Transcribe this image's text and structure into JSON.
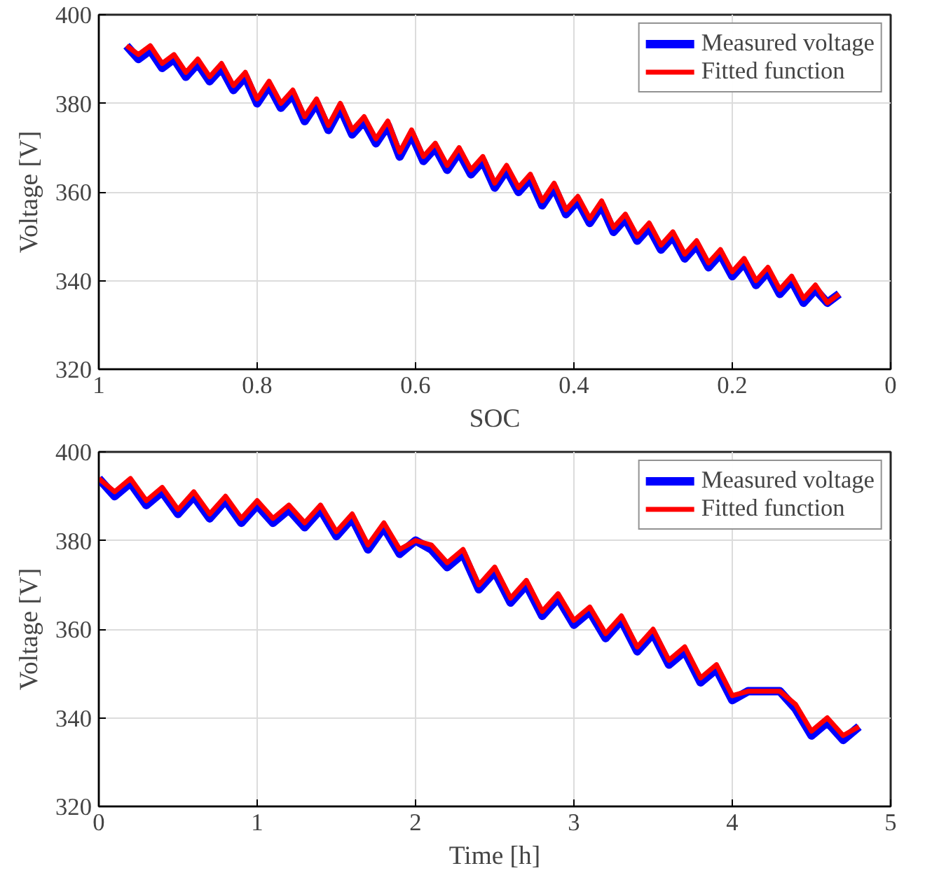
{
  "chart_data": [
    {
      "type": "line",
      "xlabel": "SOC",
      "ylabel": "Voltage [V]",
      "xlim": [
        1,
        0
      ],
      "ylim": [
        320,
        400
      ],
      "xticks": [
        1,
        0.8,
        0.6,
        0.4,
        0.2,
        0
      ],
      "yticks": [
        320,
        340,
        360,
        380,
        400
      ],
      "grid": true,
      "legend": "top right",
      "x": [
        0.965,
        0.95,
        0.935,
        0.92,
        0.905,
        0.89,
        0.875,
        0.86,
        0.845,
        0.83,
        0.815,
        0.8,
        0.785,
        0.77,
        0.755,
        0.74,
        0.725,
        0.71,
        0.695,
        0.68,
        0.665,
        0.65,
        0.635,
        0.62,
        0.605,
        0.59,
        0.575,
        0.56,
        0.545,
        0.53,
        0.515,
        0.5,
        0.485,
        0.47,
        0.455,
        0.44,
        0.425,
        0.41,
        0.395,
        0.38,
        0.365,
        0.35,
        0.335,
        0.32,
        0.305,
        0.29,
        0.275,
        0.26,
        0.245,
        0.23,
        0.215,
        0.2,
        0.185,
        0.17,
        0.155,
        0.14,
        0.125,
        0.11,
        0.095,
        0.08,
        0.065
      ],
      "series": [
        {
          "name": "Measured voltage",
          "color": "#0000ff",
          "values": [
            393,
            390,
            392,
            388,
            390,
            386,
            389,
            385,
            388,
            383,
            386,
            380,
            384,
            379,
            382,
            376,
            380,
            374,
            379,
            373,
            376,
            371,
            375,
            368,
            373,
            367,
            370,
            365,
            369,
            364,
            367,
            361,
            365,
            360,
            363,
            357,
            361,
            355,
            358,
            353,
            357,
            351,
            354,
            349,
            352,
            347,
            350,
            345,
            348,
            343,
            346,
            341,
            344,
            339,
            342,
            337,
            340,
            335,
            338,
            335,
            337
          ]
        },
        {
          "name": "Fitted function",
          "color": "#ff0000",
          "values": [
            393,
            391,
            393,
            389,
            391,
            387,
            390,
            386,
            389,
            384,
            387,
            381,
            385,
            380,
            383,
            377,
            381,
            375,
            380,
            374,
            377,
            372,
            376,
            369,
            374,
            368,
            371,
            366,
            370,
            365,
            368,
            362,
            366,
            361,
            364,
            358,
            362,
            356,
            359,
            354,
            358,
            352,
            355,
            350,
            353,
            348,
            351,
            346,
            349,
            344,
            347,
            342,
            345,
            340,
            343,
            338,
            341,
            336,
            339,
            335,
            337
          ]
        }
      ]
    },
    {
      "type": "line",
      "xlabel": "Time [h]",
      "ylabel": "Voltage [V]",
      "xlim": [
        0,
        5
      ],
      "ylim": [
        320,
        400
      ],
      "xticks": [
        0,
        1,
        2,
        3,
        4,
        5
      ],
      "yticks": [
        320,
        340,
        360,
        380,
        400
      ],
      "grid": true,
      "legend": "top right",
      "x": [
        0,
        0.1,
        0.2,
        0.3,
        0.4,
        0.5,
        0.6,
        0.7,
        0.8,
        0.9,
        1.0,
        1.1,
        1.2,
        1.3,
        1.4,
        1.5,
        1.6,
        1.7,
        1.8,
        1.9,
        2.0,
        2.1,
        2.2,
        2.3,
        2.4,
        2.5,
        2.6,
        2.7,
        2.8,
        2.9,
        3.0,
        3.1,
        3.2,
        3.3,
        3.4,
        3.5,
        3.6,
        3.7,
        3.8,
        3.9,
        4.0,
        4.1,
        4.2,
        4.3,
        4.4,
        4.5,
        4.6,
        4.7,
        4.8
      ],
      "series": [
        {
          "name": "Measured voltage",
          "color": "#0000ff",
          "values": [
            394,
            390,
            393,
            388,
            391,
            386,
            390,
            385,
            389,
            384,
            388,
            384,
            387,
            383,
            387,
            381,
            385,
            378,
            383,
            377,
            380,
            378,
            374,
            377,
            369,
            373,
            366,
            370,
            363,
            367,
            361,
            364,
            358,
            362,
            355,
            359,
            352,
            355,
            348,
            351,
            344,
            346,
            346,
            346,
            342,
            336,
            339,
            335,
            338
          ]
        },
        {
          "name": "Fitted function",
          "color": "#ff0000",
          "values": [
            394,
            391,
            394,
            389,
            392,
            387,
            391,
            386,
            390,
            385,
            389,
            385,
            388,
            384,
            388,
            382,
            386,
            379,
            384,
            378,
            380,
            379,
            375,
            378,
            370,
            374,
            367,
            371,
            364,
            368,
            362,
            365,
            359,
            363,
            356,
            360,
            353,
            356,
            349,
            352,
            345,
            346,
            346,
            346,
            343,
            337,
            340,
            336,
            338
          ]
        }
      ]
    }
  ]
}
